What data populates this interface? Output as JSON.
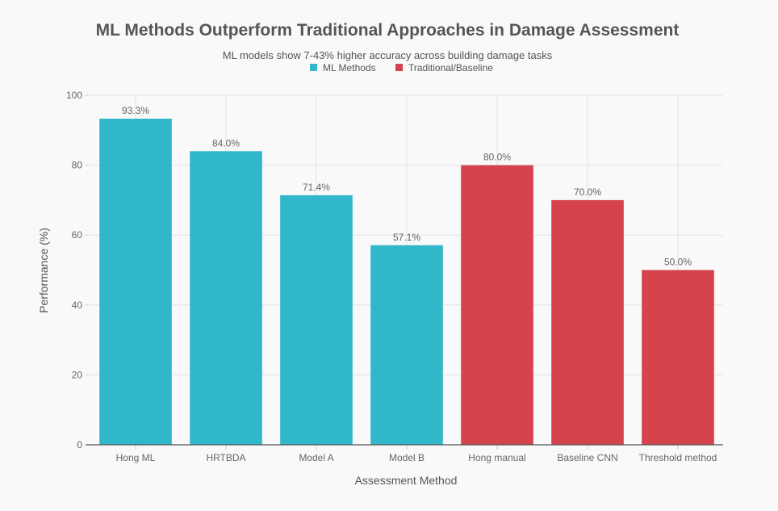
{
  "chart_data": {
    "type": "bar",
    "title": "ML Methods Outperform Traditional Approaches in Damage Assessment",
    "subtitle": "ML models show 7-43% higher accuracy across building damage tasks",
    "xlabel": "Assessment Method",
    "ylabel": "Performance (%)",
    "ylim": [
      0,
      100
    ],
    "yticks": [
      0,
      20,
      40,
      60,
      80,
      100
    ],
    "grid": true,
    "legend_position": "top-center",
    "categories": [
      "Hong ML",
      "HRTBDA",
      "Model A",
      "Model B",
      "Hong manual",
      "Baseline CNN",
      "Threshold method"
    ],
    "values": [
      93.3,
      84.0,
      71.4,
      57.1,
      80.0,
      70.0,
      50.0
    ],
    "data_labels": [
      "93.3%",
      "84.0%",
      "71.4%",
      "57.1%",
      "80.0%",
      "70.0%",
      "50.0%"
    ],
    "groups": [
      "ML Methods",
      "ML Methods",
      "ML Methods",
      "ML Methods",
      "Traditional/Baseline",
      "Traditional/Baseline",
      "Traditional/Baseline"
    ],
    "series": [
      {
        "name": "ML Methods",
        "color": "#31b7ca"
      },
      {
        "name": "Traditional/Baseline",
        "color": "#d5434c"
      }
    ]
  }
}
